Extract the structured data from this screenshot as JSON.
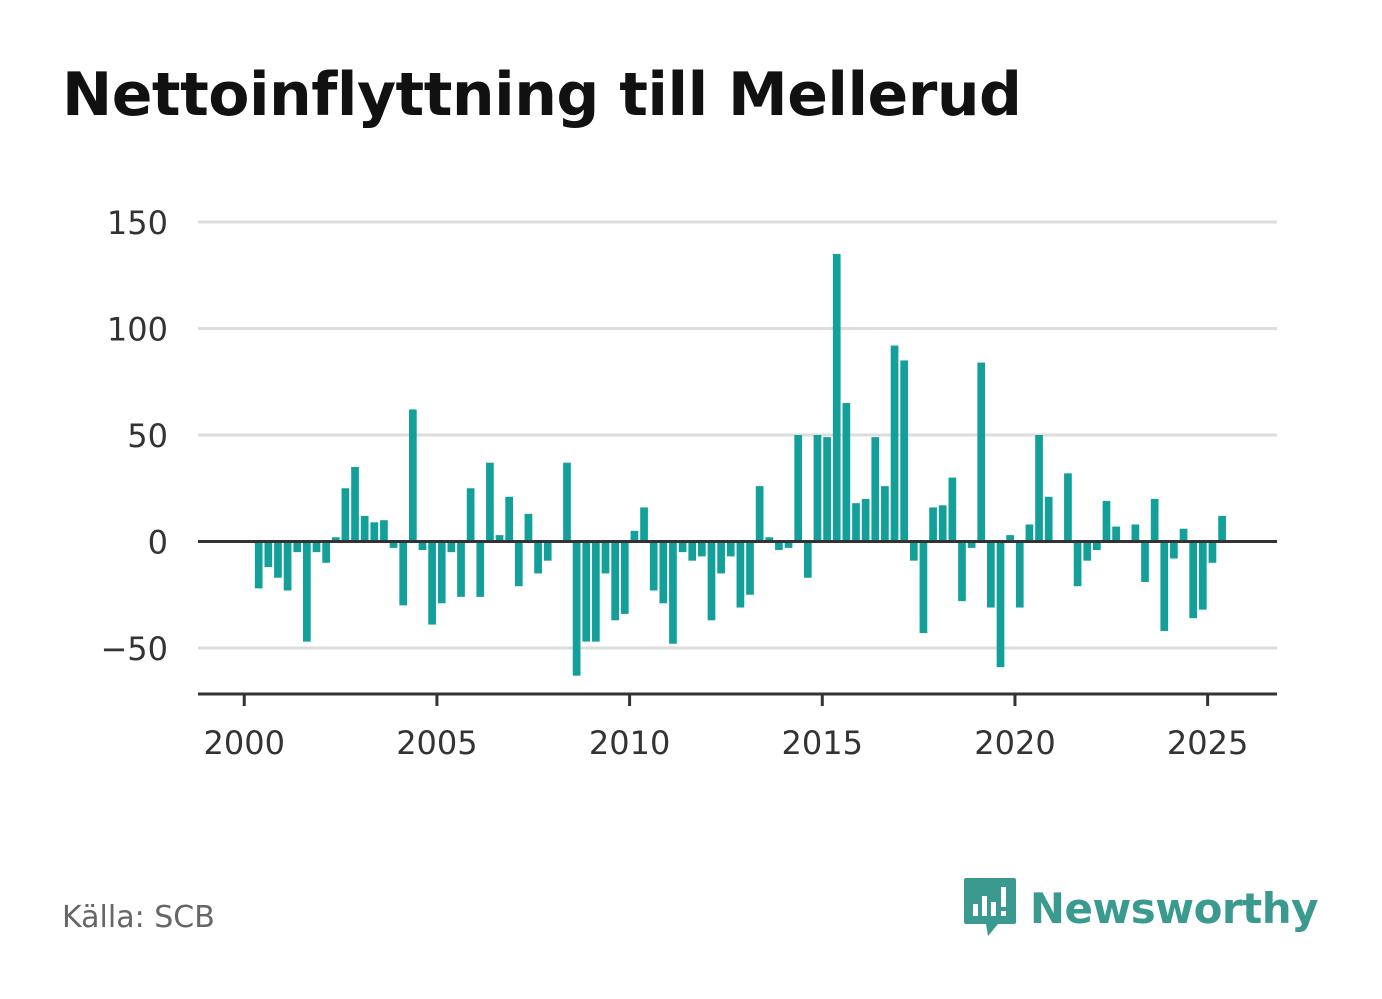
{
  "header": {
    "title": "Nettoinflyttning till Mellerud"
  },
  "footer": {
    "source": "Källa: SCB",
    "brand": "Newsworthy"
  },
  "colors": {
    "bar": "#14a09a",
    "grid": "#dddddd",
    "axis": "#333333",
    "brand": "#3b9a8f"
  },
  "icons": {
    "brand_logo": "newsworthy-logo-icon"
  },
  "chart_data": {
    "type": "bar",
    "title": "Nettoinflyttning till Mellerud",
    "xlabel": "",
    "ylabel": "",
    "x_ticks": [
      2000,
      2005,
      2010,
      2015,
      2020,
      2025
    ],
    "xlim": [
      1998.8,
      2026.8
    ],
    "y_ticks": [
      -50,
      0,
      50,
      100,
      150
    ],
    "ylim": [
      -72,
      150
    ],
    "grid": true,
    "series": [
      {
        "x": [
          2000.375,
          2000.625,
          2000.875,
          2001.125,
          2001.375,
          2001.625,
          2001.875,
          2002.125,
          2002.375,
          2002.625,
          2002.875,
          2003.125,
          2003.375,
          2003.625,
          2003.875,
          2004.125,
          2004.375,
          2004.625,
          2004.875,
          2005.125,
          2005.375,
          2005.625,
          2005.875,
          2006.125,
          2006.375,
          2006.625,
          2006.875,
          2007.125,
          2007.375,
          2007.625,
          2007.875,
          2008.125,
          2008.375,
          2008.625,
          2008.875,
          2009.125,
          2009.375,
          2009.625,
          2009.875,
          2010.125,
          2010.375,
          2010.625,
          2010.875,
          2011.125,
          2011.375,
          2011.625,
          2011.875,
          2012.125,
          2012.375,
          2012.625,
          2012.875,
          2013.125,
          2013.375,
          2013.625,
          2013.875,
          2014.125,
          2014.375,
          2014.625,
          2014.875,
          2015.125,
          2015.375,
          2015.625,
          2015.875,
          2016.125,
          2016.375,
          2016.625,
          2016.875,
          2017.125,
          2017.375,
          2017.625,
          2017.875,
          2018.125,
          2018.375,
          2018.625,
          2018.875,
          2019.125,
          2019.375,
          2019.625,
          2019.875,
          2020.125,
          2020.375,
          2020.625,
          2020.875,
          2021.125,
          2021.375,
          2021.625,
          2021.875,
          2022.125,
          2022.375,
          2022.625,
          2022.875,
          2023.125,
          2023.375,
          2023.625,
          2023.875,
          2024.125,
          2024.375,
          2024.625,
          2024.875,
          2025.125,
          2025.375
        ],
        "values": [
          -22,
          -12,
          -17,
          -23,
          -5,
          -47,
          -5,
          -10,
          2,
          25,
          35,
          12,
          9,
          10,
          -3,
          -30,
          62,
          -4,
          -39,
          -29,
          -5,
          -26,
          25,
          -26,
          37,
          3,
          21,
          -21,
          13,
          -15,
          -9,
          0,
          37,
          -63,
          -47,
          -47,
          -15,
          -37,
          -34,
          5,
          16,
          -23,
          -29,
          -48,
          -5,
          -9,
          -7,
          -37,
          -15,
          -7,
          -31,
          -25,
          26,
          2,
          -4,
          -3,
          50,
          -17,
          50,
          49,
          135,
          65,
          18,
          20,
          49,
          26,
          92,
          85,
          -9,
          -43,
          16,
          17,
          30,
          -28,
          -3,
          84,
          -31,
          -59,
          3,
          -31,
          8,
          50,
          21,
          0,
          32,
          -21,
          -9,
          -4,
          19,
          7,
          0,
          8,
          -19,
          20,
          -42,
          -8,
          6,
          -36,
          -32,
          -10,
          12
        ]
      }
    ]
  }
}
